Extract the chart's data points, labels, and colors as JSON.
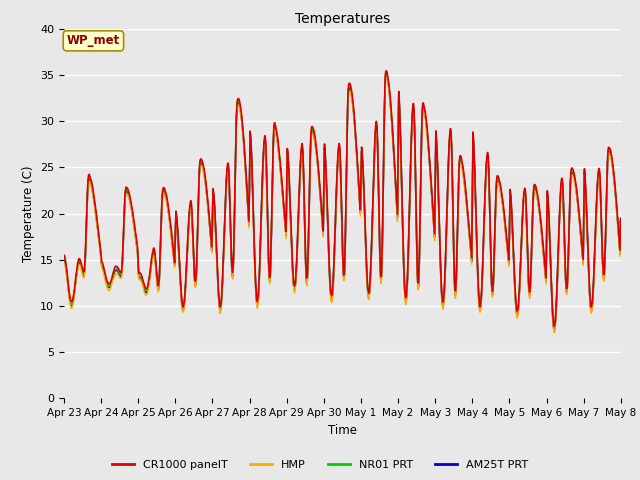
{
  "title": "Temperatures",
  "xlabel": "Time",
  "ylabel": "Temperature (C)",
  "annotation": "WP_met",
  "ylim": [
    0,
    40
  ],
  "yticks": [
    0,
    5,
    10,
    15,
    20,
    25,
    30,
    35,
    40
  ],
  "x_labels": [
    "Apr 23",
    "Apr 24",
    "Apr 25",
    "Apr 26",
    "Apr 27",
    "Apr 28",
    "Apr 29",
    "Apr 30",
    "May 1",
    "May 2",
    "May 3",
    "May 4",
    "May 5",
    "May 6",
    "May 7",
    "May 8"
  ],
  "series_colors": [
    "#dd0000",
    "#ffaa00",
    "#00cc00",
    "#0000cc"
  ],
  "series_names": [
    "CR1000 panelT",
    "HMP",
    "NR01 PRT",
    "AM25T PRT"
  ],
  "bg_color": "#e8e8e8",
  "fig_bg_color": "#e8e8e8",
  "grid_color": "#ffffff",
  "day_peaks": [
    26.5,
    22.5,
    22.5,
    22.5,
    27.0,
    34.5,
    27.0,
    30.0,
    35.5,
    35.0,
    30.0,
    24.0,
    23.5,
    22.5,
    25.5,
    27.5
  ],
  "day_peaks2": [
    15.0,
    14.5,
    13.0,
    20.0,
    22.5,
    29.0,
    27.0,
    27.5,
    27.0,
    33.5,
    29.0,
    29.0,
    22.5,
    22.5,
    25.0,
    24.0
  ],
  "day_troughs": [
    9.5,
    12.0,
    12.0,
    9.5,
    9.5,
    9.5,
    12.0,
    10.5,
    11.0,
    10.5,
    10.0,
    9.5,
    9.5,
    7.0,
    8.5,
    13.0
  ],
  "mid_troughs": [
    12.5,
    14.0,
    12.5,
    11.0,
    13.0,
    13.0,
    12.0,
    12.5,
    13.0,
    12.0,
    11.5,
    10.5,
    11.5,
    10.5,
    12.0,
    13.5
  ]
}
